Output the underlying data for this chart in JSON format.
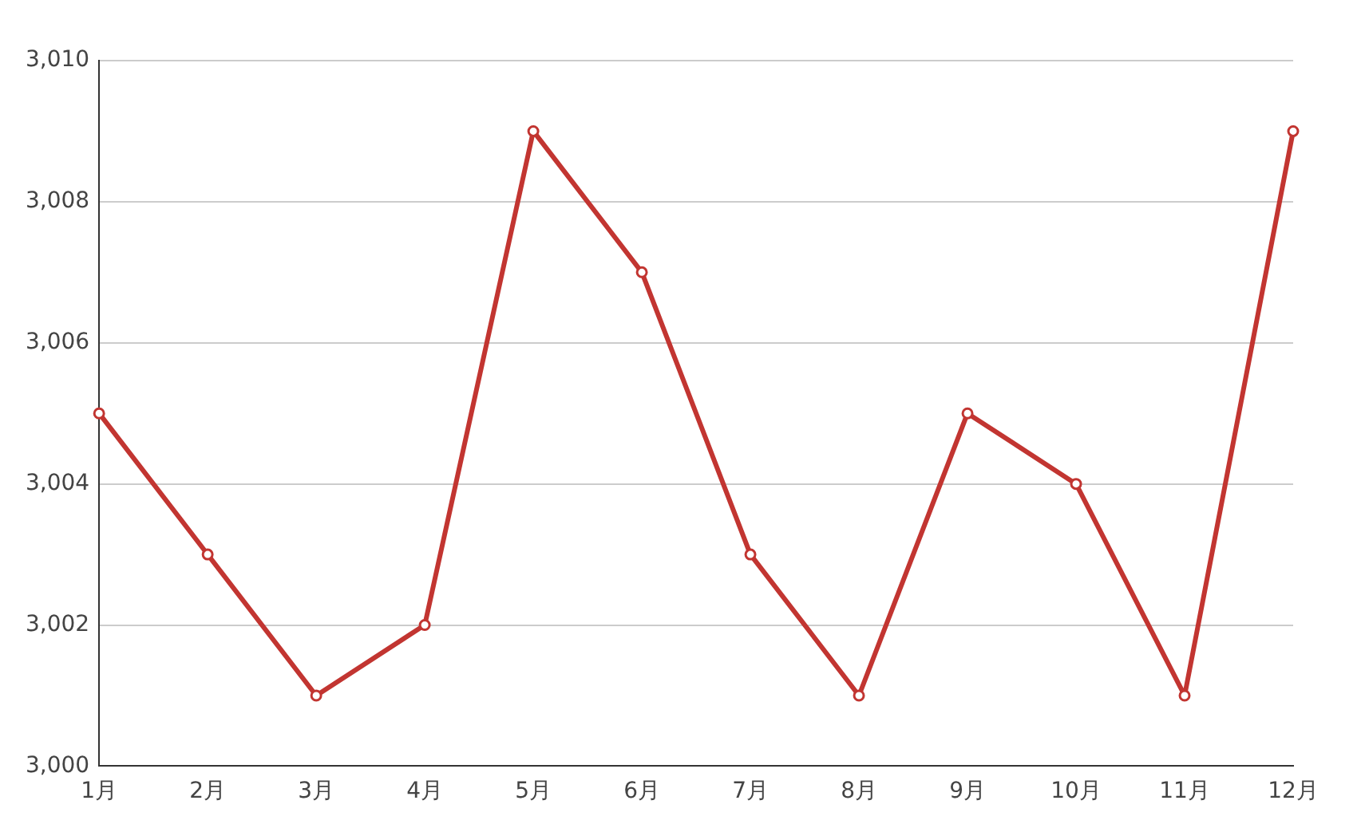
{
  "chart_data": {
    "type": "line",
    "categories": [
      "1月",
      "2月",
      "3月",
      "4月",
      "5月",
      "6月",
      "7月",
      "8月",
      "9月",
      "10月",
      "11月",
      "12月"
    ],
    "series": [
      {
        "color": "#c23531",
        "values": [
          3005,
          3003,
          3001,
          3002,
          3009,
          3007,
          3003,
          3001,
          3005,
          3004,
          3001,
          3009
        ]
      }
    ],
    "ylim": [
      3000,
      3010
    ],
    "yticks": [
      {
        "value": 3000,
        "label": "3,000"
      },
      {
        "value": 3002,
        "label": "3,002"
      },
      {
        "value": 3004,
        "label": "3,004"
      },
      {
        "value": 3006,
        "label": "3,006"
      },
      {
        "value": 3008,
        "label": "3,008"
      },
      {
        "value": 3010,
        "label": "3,010"
      }
    ],
    "grid": "y",
    "legend": false,
    "marker": "circle",
    "line_style": "solid"
  }
}
